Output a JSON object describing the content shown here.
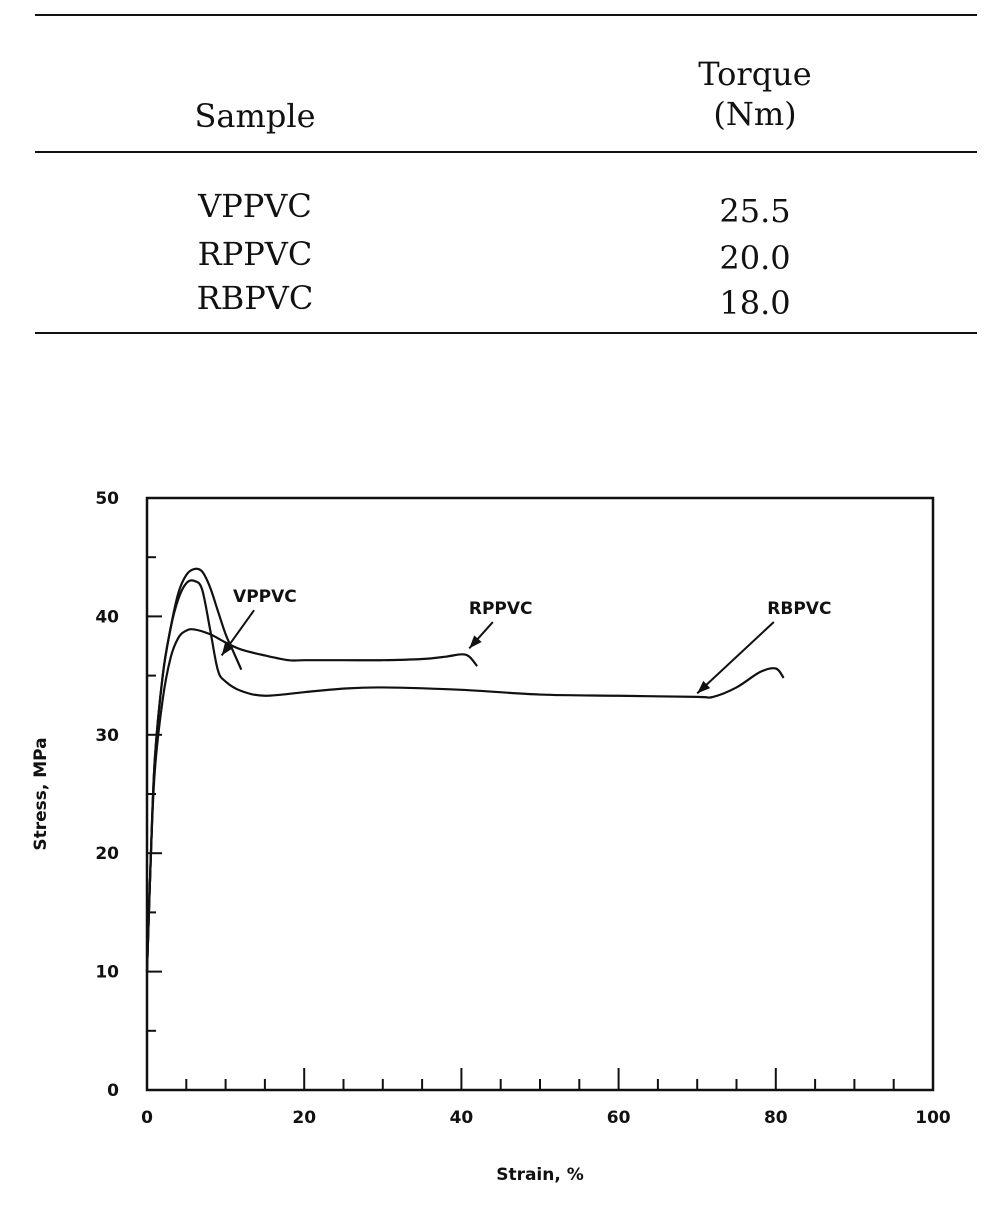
{
  "table": {
    "headers": {
      "sample": "Sample",
      "torque_line1": "Torque",
      "torque_line2": "(Nm)"
    },
    "rows": [
      {
        "sample": "VPPVC",
        "torque": "25.5"
      },
      {
        "sample": "RPPVC",
        "torque": "20.0"
      },
      {
        "sample": "RBPVC",
        "torque": "18.0"
      }
    ]
  },
  "chart_data": {
    "type": "line",
    "title": "",
    "xlabel": "Strain, %",
    "ylabel": "Stress, MPa",
    "xlim": [
      0,
      100
    ],
    "ylim": [
      0,
      50
    ],
    "xticks": [
      0,
      20,
      40,
      60,
      80,
      100
    ],
    "yticks": [
      0,
      10,
      20,
      30,
      40,
      50
    ],
    "grid": false,
    "series": [
      {
        "name": "VPPVC",
        "x": [
          0,
          0.5,
          1,
          2,
          3,
          4,
          5,
          6,
          7,
          8,
          9,
          10,
          11,
          12
        ],
        "y": [
          10,
          20,
          28,
          35,
          39,
          42,
          43.5,
          44,
          43.8,
          42.5,
          40.5,
          38.5,
          37,
          35.5
        ]
      },
      {
        "name": "RPPVC",
        "x": [
          0,
          0.5,
          1,
          2,
          3,
          4,
          5,
          6,
          8,
          10,
          12,
          15,
          18,
          20,
          25,
          30,
          35,
          38,
          40,
          41,
          42
        ],
        "y": [
          10,
          20,
          27,
          33,
          36.5,
          38.2,
          38.8,
          38.9,
          38.5,
          37.8,
          37.2,
          36.7,
          36.3,
          36.3,
          36.3,
          36.3,
          36.4,
          36.6,
          36.8,
          36.6,
          35.8
        ]
      },
      {
        "name": "RBPVC",
        "x": [
          0,
          0.5,
          1,
          2,
          3,
          4,
          5,
          6,
          7,
          8,
          9,
          10,
          12,
          15,
          20,
          25,
          30,
          40,
          50,
          60,
          70,
          72,
          75,
          78,
          80,
          81
        ],
        "y": [
          10,
          20,
          28,
          35,
          39,
          41.5,
          42.8,
          43,
          42.3,
          39,
          35.5,
          34.5,
          33.7,
          33.3,
          33.6,
          33.9,
          34,
          33.8,
          33.4,
          33.3,
          33.2,
          33.2,
          34,
          35.3,
          35.6,
          34.8
        ]
      }
    ],
    "annotations": [
      {
        "text": "VPPVC",
        "x": 15,
        "y": 41.2,
        "arrow_to": [
          9.5,
          36.7
        ]
      },
      {
        "text": "RPPVC",
        "x": 45,
        "y": 40.2,
        "arrow_to": [
          41,
          37.3
        ]
      },
      {
        "text": "RBPVC",
        "x": 83,
        "y": 40.2,
        "arrow_to": [
          70,
          33.5
        ]
      }
    ]
  }
}
